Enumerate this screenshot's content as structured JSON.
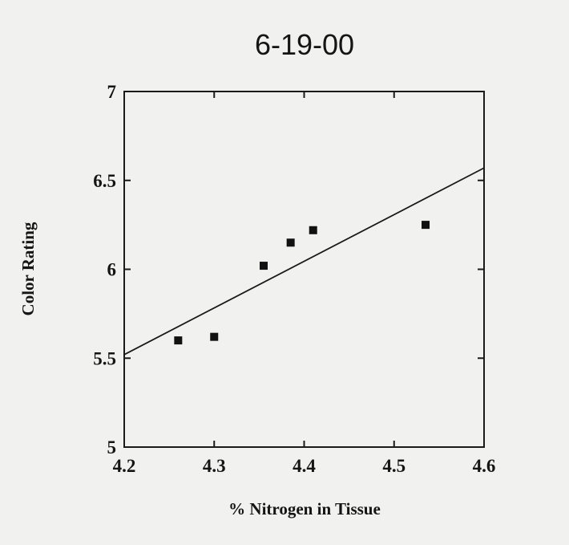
{
  "chart_data": {
    "type": "scatter",
    "title": "6-19-00",
    "xlabel": "% Nitrogen in Tissue",
    "ylabel": "Color Rating",
    "xlim": [
      4.2,
      4.6
    ],
    "ylim": [
      5,
      7
    ],
    "x_ticks": [
      "4.2",
      "4.3",
      "4.4",
      "4.5",
      "4.6"
    ],
    "y_ticks": [
      "5",
      "5.5",
      "6",
      "6.5",
      "7"
    ],
    "grid": false,
    "series": [
      {
        "points": [
          {
            "x": 4.26,
            "y": 5.6
          },
          {
            "x": 4.3,
            "y": 5.62
          },
          {
            "x": 4.355,
            "y": 6.02
          },
          {
            "x": 4.385,
            "y": 6.15
          },
          {
            "x": 4.41,
            "y": 6.22
          },
          {
            "x": 4.535,
            "y": 6.25
          }
        ]
      }
    ],
    "trendline": {
      "type": "linear",
      "points": [
        {
          "x": 4.2,
          "y": 5.52
        },
        {
          "x": 4.6,
          "y": 6.57
        }
      ]
    }
  }
}
